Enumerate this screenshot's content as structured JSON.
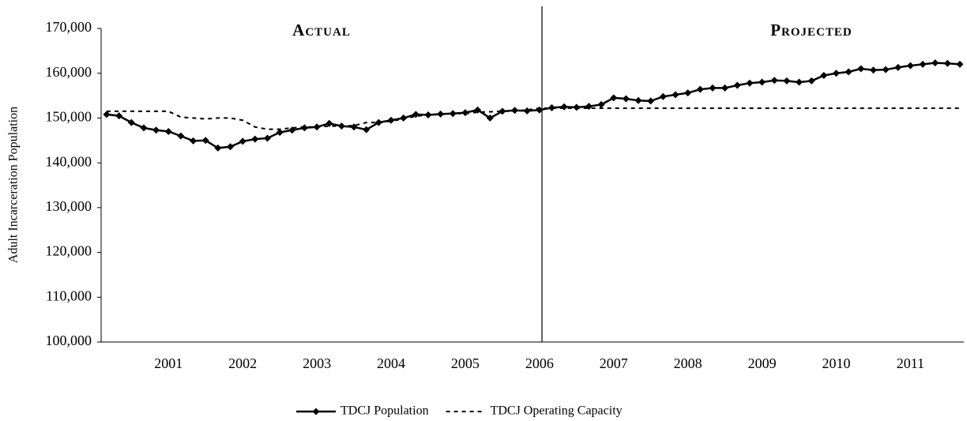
{
  "chart_data": {
    "type": "line",
    "annotations": [
      "Actual",
      "Projected"
    ],
    "y_label": "Adult Incarceration Population",
    "categories": [
      null,
      null,
      null,
      null,
      null,
      "2001",
      null,
      null,
      null,
      null,
      null,
      "2002",
      null,
      null,
      null,
      null,
      null,
      "2003",
      null,
      null,
      null,
      null,
      null,
      "2004",
      null,
      null,
      null,
      null,
      null,
      "2005",
      null,
      null,
      null,
      null,
      null,
      "2006",
      null,
      null,
      null,
      null,
      null,
      "2007",
      null,
      null,
      null,
      null,
      null,
      "2008",
      null,
      null,
      null,
      null,
      null,
      "2009",
      null,
      null,
      null,
      null,
      null,
      "2010",
      null,
      null,
      null,
      null,
      null,
      "2011",
      null,
      null,
      null,
      null
    ],
    "series": [
      {
        "name": "TDCJ Population",
        "color": "#000000",
        "marker": "diamond",
        "dash": false,
        "values": [
          150800,
          150500,
          149000,
          147800,
          147300,
          147000,
          146000,
          144900,
          145000,
          143300,
          143600,
          144800,
          145300,
          145500,
          146800,
          147300,
          147800,
          148000,
          148800,
          148200,
          148000,
          147400,
          149000,
          149500,
          150000,
          150800,
          150700,
          150900,
          151000,
          151200,
          151800,
          150000,
          151500,
          151700,
          151600,
          151800,
          152300,
          152500,
          152400,
          152600,
          153000,
          154500,
          154300,
          153900,
          153800,
          154800,
          155200,
          155600,
          156400,
          156700,
          156700,
          157300,
          157800,
          158000,
          158400,
          158300,
          158000,
          158300,
          159500,
          160000,
          160300,
          161000,
          160700,
          160800,
          161300,
          161700,
          162000,
          162300,
          162200,
          162000
        ]
      },
      {
        "name": "TDCJ Operating Capacity",
        "color": "#000000",
        "marker": "none",
        "dash": true,
        "values": [
          151500,
          151500,
          151500,
          151500,
          151500,
          151500,
          150200,
          150000,
          149800,
          150000,
          150000,
          149500,
          148000,
          147500,
          147500,
          147800,
          148000,
          148000,
          148200,
          148200,
          148300,
          149000,
          149000,
          149300,
          149800,
          150400,
          150700,
          150800,
          151000,
          151000,
          151300,
          151400,
          151500,
          151600,
          151800,
          152200,
          152200,
          152200,
          152200,
          152200,
          152200,
          152200,
          152200,
          152200,
          152200,
          152200,
          152200,
          152200,
          152200,
          152200,
          152200,
          152200,
          152200,
          152200,
          152200,
          152200,
          152200,
          152200,
          152200,
          152200,
          152200,
          152200,
          152200,
          152200,
          152200,
          152200,
          152200,
          152200,
          152200,
          152200
        ]
      }
    ],
    "ylim": [
      100000,
      170000
    ],
    "yticks": [
      {
        "value": 100000,
        "label": "100,000"
      },
      {
        "value": 110000,
        "label": "110,000"
      },
      {
        "value": 120000,
        "label": "120,000"
      },
      {
        "value": 130000,
        "label": "130,000"
      },
      {
        "value": 140000,
        "label": "140,000"
      },
      {
        "value": 150000,
        "label": "150,000"
      },
      {
        "value": 160000,
        "label": "160,000"
      },
      {
        "value": 170000,
        "label": "170,000"
      }
    ],
    "grid": false,
    "legend": "bottom"
  }
}
